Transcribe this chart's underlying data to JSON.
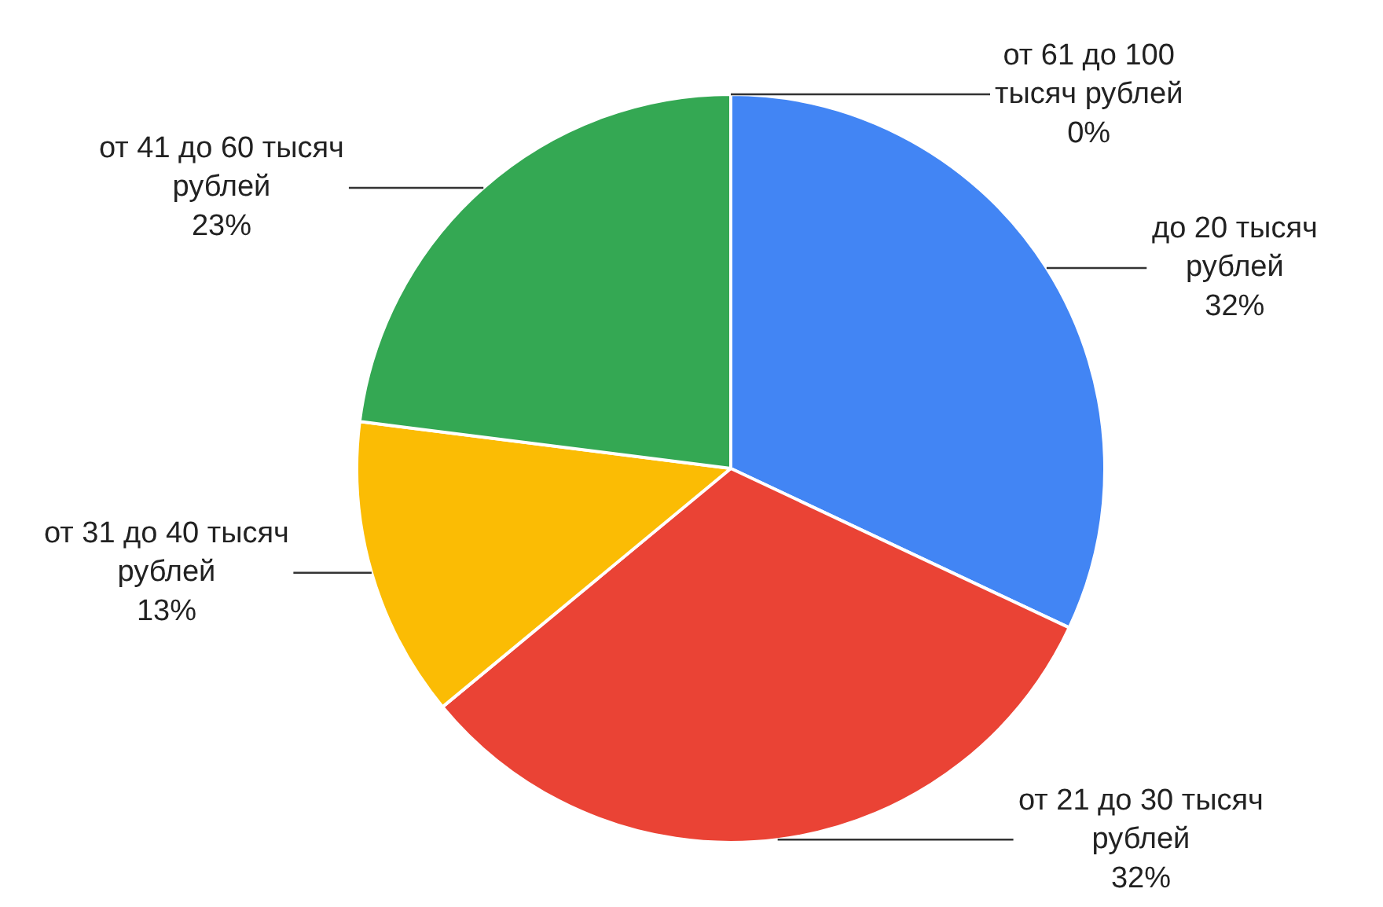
{
  "chart_data": {
    "type": "pie",
    "categories": [
      "до 20 тысяч рублей",
      "от 21 до 30 тысяч рублей",
      "от 31 до 40 тысяч рублей",
      "от 41 до 60 тысяч рублей",
      "от 61 до 100 тысяч рублей"
    ],
    "values": [
      32,
      32,
      13,
      23,
      0
    ],
    "colors": [
      "#4285f4",
      "#ea4335",
      "#fbbc04",
      "#34a853",
      null
    ],
    "value_labels": [
      "32%",
      "32%",
      "13%",
      "23%",
      "0%"
    ],
    "legend": false
  }
}
